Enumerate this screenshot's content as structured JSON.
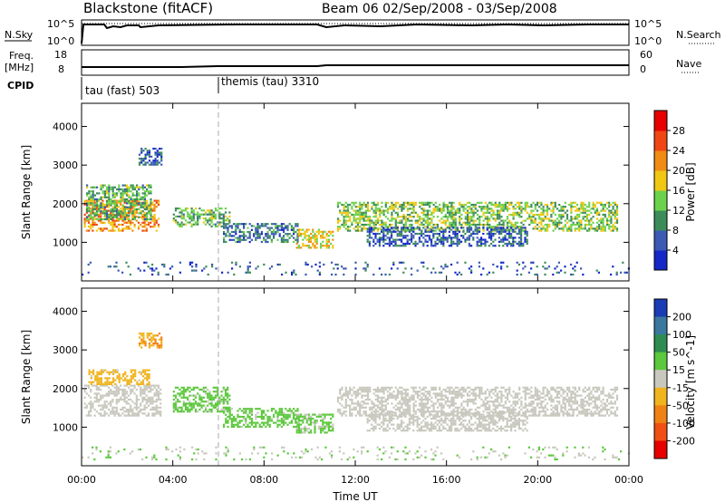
{
  "header": {
    "station": "Blackstone (fitACF)",
    "beam_dates": "Beam 06  02/Sep/2008 - 03/Sep/2008"
  },
  "noise_panel": {
    "left_label": "N.Sky",
    "right_label": "N.Search",
    "left_ticks": [
      "10^5",
      "10^0"
    ],
    "right_ticks": [
      "10^5",
      "10^0"
    ]
  },
  "freq_panel": {
    "label_lines": [
      "Freq.",
      "[MHz]"
    ],
    "right_label": "Nave",
    "left_ticks": [
      "18",
      "8"
    ],
    "right_ticks": [
      "60",
      "0"
    ]
  },
  "cpid": {
    "label": "CPID",
    "segments": [
      {
        "name": "tau (fast) 503",
        "start_hour": 0.0,
        "end_hour": 6.0
      },
      {
        "name": "themis (tau) 3310",
        "start_hour": 6.0,
        "end_hour": 24.0
      }
    ]
  },
  "colors": {
    "power_scale": [
      "#1428c8",
      "#3a5ab4",
      "#3c8c5a",
      "#6cd24c",
      "#f0c814",
      "#f08c14",
      "#f04614",
      "#e60000"
    ],
    "velocity_scale": [
      "#1a3cb4",
      "#3a78a0",
      "#2e8c50",
      "#5cc83c",
      "#c8c8be",
      "#f0b41e",
      "#f08214",
      "#f05014",
      "#e60000"
    ]
  },
  "chart_data": [
    {
      "type": "heatmap",
      "id": "power",
      "xlabel": "",
      "ylabel": "Slant Range [km]",
      "xlim": [
        0,
        24
      ],
      "ylim": [
        0,
        4600
      ],
      "x_ticks": [
        0,
        4,
        8,
        12,
        16,
        20,
        24
      ],
      "y_ticks": [
        1000,
        2000,
        3000,
        4000
      ],
      "colorbar": {
        "label": "Power [dB]",
        "ticks": [
          "4",
          "8",
          "12",
          "16",
          "20",
          "24",
          "28"
        ],
        "range": [
          0,
          32
        ]
      },
      "regions": [
        {
          "t0": 0.1,
          "t1": 3.4,
          "r0": 1300,
          "r1": 2100,
          "value": 22
        },
        {
          "t0": 0.2,
          "t1": 3.0,
          "r0": 1600,
          "r1": 2500,
          "value": 12
        },
        {
          "t0": 2.5,
          "t1": 3.5,
          "r0": 3000,
          "r1": 3450,
          "value": 6
        },
        {
          "t0": 4.0,
          "t1": 6.5,
          "r0": 1400,
          "r1": 1900,
          "value": 12
        },
        {
          "t0": 6.2,
          "t1": 9.5,
          "r0": 1000,
          "r1": 1500,
          "value": 8
        },
        {
          "t0": 9.4,
          "t1": 11.0,
          "r0": 850,
          "r1": 1350,
          "value": 18
        },
        {
          "t0": 11.2,
          "t1": 23.5,
          "r0": 1300,
          "r1": 2050,
          "value": 14
        },
        {
          "t0": 12.5,
          "t1": 19.5,
          "r0": 900,
          "r1": 1400,
          "value": 6
        },
        {
          "t0": 0.0,
          "t1": 24.0,
          "r0": 180,
          "r1": 500,
          "value": 6
        }
      ]
    },
    {
      "type": "heatmap",
      "id": "velocity",
      "xlabel": "Time UT",
      "ylabel": "Slant Range [km]",
      "xlim": [
        0,
        24
      ],
      "ylim": [
        0,
        4600
      ],
      "x_ticks": [
        0,
        4,
        8,
        12,
        16,
        20,
        24
      ],
      "x_tick_labels": [
        "00:00",
        "04:00",
        "08:00",
        "12:00",
        "16:00",
        "20:00",
        "00:00"
      ],
      "y_ticks": [
        1000,
        2000,
        3000,
        4000
      ],
      "colorbar": {
        "label": "Velocity [m s^-1]",
        "ticks": [
          "200",
          "100",
          "50",
          "15",
          "-15",
          "-50",
          "-100",
          "-200"
        ],
        "range": [
          -250,
          250
        ]
      },
      "regions": [
        {
          "t0": 0.1,
          "t1": 3.5,
          "r0": 1300,
          "r1": 2100,
          "value": 0
        },
        {
          "t0": 0.3,
          "t1": 3.0,
          "r0": 2100,
          "r1": 2500,
          "value": -40
        },
        {
          "t0": 2.5,
          "t1": 3.5,
          "r0": 3050,
          "r1": 3450,
          "value": -80
        },
        {
          "t0": 4.0,
          "t1": 6.5,
          "r0": 1400,
          "r1": 2050,
          "value": 40
        },
        {
          "t0": 6.2,
          "t1": 9.5,
          "r0": 1000,
          "r1": 1500,
          "value": 40
        },
        {
          "t0": 9.4,
          "t1": 11.0,
          "r0": 850,
          "r1": 1350,
          "value": 35
        },
        {
          "t0": 11.2,
          "t1": 23.5,
          "r0": 1300,
          "r1": 2050,
          "value": 0
        },
        {
          "t0": 12.5,
          "t1": 19.5,
          "r0": 900,
          "r1": 1400,
          "value": 0
        },
        {
          "t0": 0.0,
          "t1": 24.0,
          "r0": 180,
          "r1": 500,
          "value": 25
        }
      ]
    }
  ]
}
